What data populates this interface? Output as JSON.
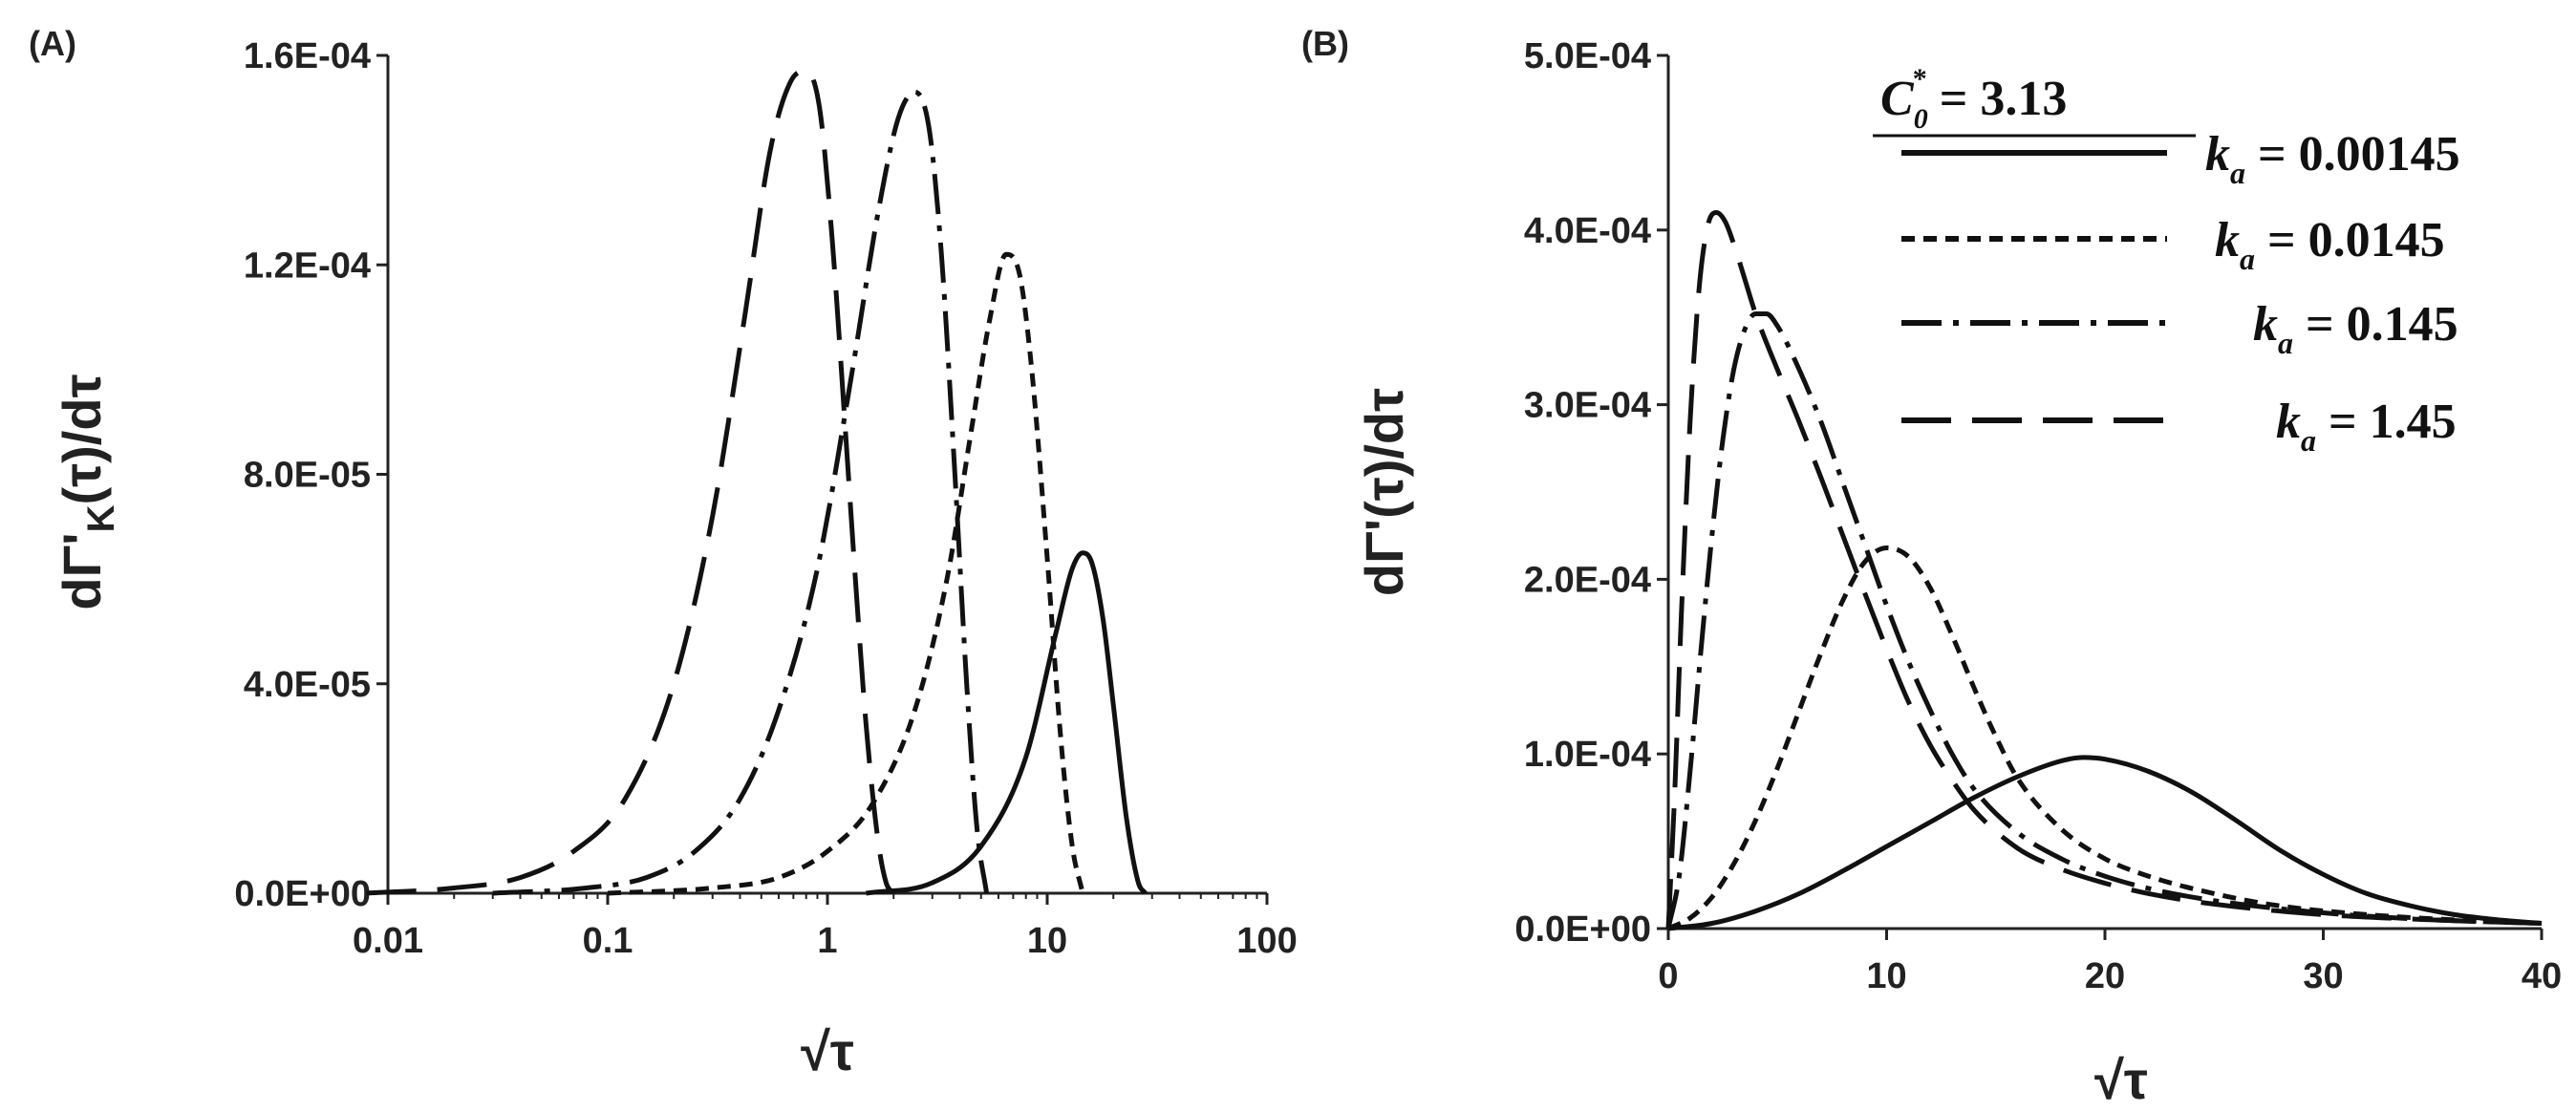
{
  "chart_data": [
    {
      "panel_label": "(A)",
      "type": "line",
      "x_scale": "log",
      "xlabel": "√τ",
      "ylabel": "dΓ'K(τ)/dτ",
      "ylabel_parts": {
        "main": "dΓ'",
        "sub": "K",
        "rest": "(τ)/dτ"
      },
      "xlim": [
        0.01,
        100
      ],
      "ylim": [
        0,
        0.00016
      ],
      "x_ticks": [
        0.01,
        0.1,
        1,
        10,
        100
      ],
      "x_tick_labels": [
        "0.01",
        "0.1",
        "1",
        "10",
        "100"
      ],
      "y_ticks": [
        0,
        4e-05,
        8e-05,
        0.00012,
        0.00016
      ],
      "y_tick_labels": [
        "0.0E+00",
        "4.0E-05",
        "8.0E-05",
        "1.2E-04",
        "1.6E-04"
      ],
      "grid": false,
      "series": [
        {
          "style": "solid",
          "peak_x": 14.5,
          "peak_y": 6.5e-05,
          "x": [
            1.5,
            3,
            5,
            8,
            11,
            13,
            14.5,
            16,
            18,
            20,
            23,
            26,
            28
          ],
          "y": [
            0,
            2e-06,
            9e-06,
            2.6e-05,
            5e-05,
            6.2e-05,
            6.5e-05,
            6.3e-05,
            5.2e-05,
            3.6e-05,
            1.4e-05,
            2e-06,
            0
          ]
        },
        {
          "style": "short-dash",
          "peak_x": 6.5,
          "peak_y": 0.000122,
          "x": [
            0.1,
            0.3,
            0.6,
            1,
            1.6,
            2.5,
            3.5,
            4.5,
            5.5,
            6.5,
            7.5,
            8.5,
            10,
            11.5,
            13,
            14.5
          ],
          "y": [
            0,
            1e-06,
            3e-06,
            8e-06,
            1.7e-05,
            3.5e-05,
            6e-05,
            8.8e-05,
            0.00011,
            0.000122,
            0.000118,
            0.0001,
            6.4e-05,
            3e-05,
            9e-06,
            0
          ]
        },
        {
          "style": "dash-dot",
          "peak_x": 2.5,
          "peak_y": 0.000153,
          "x": [
            0.03,
            0.08,
            0.15,
            0.25,
            0.4,
            0.6,
            0.9,
            1.3,
            1.7,
            2.1,
            2.5,
            2.9,
            3.3,
            3.8,
            4.3,
            4.8,
            5.3
          ],
          "y": [
            0,
            1e-06,
            3e-06,
            8e-06,
            1.8e-05,
            3.5e-05,
            6.2e-05,
            0.0001,
            0.00013,
            0.000148,
            0.000153,
            0.000146,
            0.000122,
            8e-05,
            4e-05,
            1.2e-05,
            0
          ]
        },
        {
          "style": "long-dash",
          "peak_x": 0.8,
          "peak_y": 0.000157,
          "x": [
            0.008,
            0.02,
            0.04,
            0.07,
            0.12,
            0.2,
            0.3,
            0.42,
            0.55,
            0.68,
            0.8,
            0.92,
            1.05,
            1.2,
            1.35,
            1.5,
            1.7,
            1.85,
            2.0
          ],
          "y": [
            0,
            1e-06,
            3e-06,
            8e-06,
            1.8e-05,
            4e-05,
            7.2e-05,
            0.00011,
            0.000142,
            0.000155,
            0.000157,
            0.00015,
            0.000125,
            9e-05,
            5.8e-05,
            3.2e-05,
            1e-05,
            2e-06,
            0
          ]
        }
      ]
    },
    {
      "panel_label": "(B)",
      "type": "line",
      "x_scale": "linear",
      "xlabel": "√τ",
      "ylabel": "dΓ'(τ)/dτ",
      "xlim": [
        0,
        40
      ],
      "ylim": [
        0,
        0.0005
      ],
      "x_ticks": [
        0,
        10,
        20,
        30,
        40
      ],
      "x_tick_labels": [
        "0",
        "10",
        "20",
        "30",
        "40"
      ],
      "y_ticks": [
        0,
        0.0001,
        0.0002,
        0.0003,
        0.0004,
        0.0005
      ],
      "y_tick_labels": [
        "0.0E+00",
        "1.0E-04",
        "2.0E-04",
        "3.0E-04",
        "4.0E-04",
        "5.0E-04"
      ],
      "grid": false,
      "legend": {
        "position": "top-right",
        "header": {
          "symbol": "C",
          "sub": "0",
          "sup": "*",
          "text": " = 3.13"
        },
        "entries": [
          {
            "symbol": "k",
            "sub": "a",
            "text": " = 0.00145",
            "style": "solid"
          },
          {
            "symbol": "k",
            "sub": "a",
            "text": " = 0.0145",
            "style": "short-dash"
          },
          {
            "symbol": "k",
            "sub": "a",
            "text": " = 0.145",
            "style": "dash-dot"
          },
          {
            "symbol": "k",
            "sub": "a",
            "text": " = 1.45",
            "style": "long-dash"
          }
        ]
      },
      "series": [
        {
          "style": "solid",
          "peak_x": 19,
          "peak_y": 9.8e-05,
          "x": [
            0,
            2,
            4,
            6,
            8,
            10,
            12,
            14,
            16,
            18,
            19,
            20,
            22,
            24,
            26,
            28,
            30,
            32,
            34,
            36,
            38,
            40
          ],
          "y": [
            0,
            3e-06,
            1e-05,
            2e-05,
            3.3e-05,
            4.7e-05,
            6.1e-05,
            7.5e-05,
            8.7e-05,
            9.6e-05,
            9.8e-05,
            9.7e-05,
            9e-05,
            7.8e-05,
            6.2e-05,
            4.5e-05,
            3.1e-05,
            2e-05,
            1.3e-05,
            8e-06,
            5e-06,
            3e-06
          ]
        },
        {
          "style": "short-dash",
          "peak_x": 10,
          "peak_y": 0.000218,
          "x": [
            0,
            1,
            2,
            3,
            4,
            5,
            6,
            7,
            8,
            9,
            10,
            11,
            12,
            13,
            14,
            15,
            16,
            18,
            20,
            22,
            25,
            28,
            32,
            36,
            40
          ],
          "y": [
            0,
            6e-06,
            1.8e-05,
            3.7e-05,
            6.2e-05,
            9.2e-05,
            0.000125,
            0.000158,
            0.000188,
            0.00021,
            0.000218,
            0.000213,
            0.000195,
            0.000168,
            0.000138,
            0.00011,
            8.6e-05,
            5.7e-05,
            4e-05,
            3e-05,
            2e-05,
            1.3e-05,
            8e-06,
            5e-06,
            3e-06
          ]
        },
        {
          "style": "dash-dot",
          "peak_x": 4.5,
          "peak_y": 0.000352,
          "x": [
            0,
            0.5,
            1,
            1.5,
            2,
            2.5,
            3,
            3.5,
            4,
            4.5,
            5,
            6,
            7,
            8,
            9,
            10,
            11,
            12,
            13,
            14,
            16,
            18,
            20,
            22,
            25,
            30,
            35,
            40
          ],
          "y": [
            0,
            3e-05,
            9e-05,
            0.00016,
            0.000225,
            0.00028,
            0.00032,
            0.000343,
            0.000352,
            0.000352,
            0.000345,
            0.00032,
            0.00029,
            0.000255,
            0.00022,
            0.000185,
            0.000153,
            0.000125,
            0.0001,
            8e-05,
            5.5e-05,
            4e-05,
            3e-05,
            2.3e-05,
            1.6e-05,
            9e-06,
            5e-06,
            3e-06
          ]
        },
        {
          "style": "long-dash",
          "peak_x": 2.2,
          "peak_y": 0.00041,
          "x": [
            0,
            0.3,
            0.6,
            1,
            1.4,
            1.8,
            2.2,
            2.6,
            3,
            3.5,
            4,
            5,
            6,
            7,
            8,
            9,
            10,
            11,
            12,
            13,
            14,
            16,
            18,
            20,
            22,
            25,
            30,
            35,
            40
          ],
          "y": [
            0,
            8e-05,
            0.00018,
            0.00029,
            0.000365,
            0.000402,
            0.00041,
            0.000405,
            0.000392,
            0.000372,
            0.000352,
            0.00032,
            0.00029,
            0.000258,
            0.000225,
            0.000192,
            0.00016,
            0.00013,
            0.000105,
            8.5e-05,
            6.8e-05,
            4.6e-05,
            3.4e-05,
            2.6e-05,
            2e-05,
            1.4e-05,
            8e-06,
            5e-06,
            3e-06
          ]
        }
      ]
    }
  ]
}
